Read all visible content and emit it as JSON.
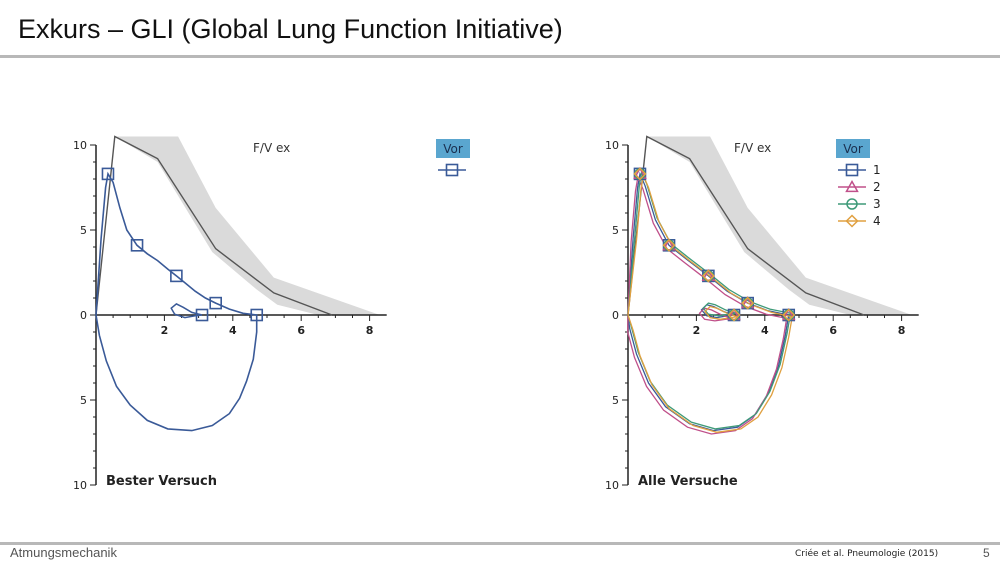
{
  "slide": {
    "title": "Exkurs – GLI (Global Lung Function Initiative)",
    "footer_left": "Atmungsmechanik",
    "citation": "Criée et al. Pneumologie (2015)",
    "page_number": "5"
  },
  "chart_data": [
    {
      "type": "line",
      "title": "F/V ex",
      "panel_label": "Bester Versuch",
      "x_ticks": [
        "2",
        "4",
        "6",
        "8"
      ],
      "y_ticks": [
        "10",
        "5",
        "0",
        "5",
        "10"
      ],
      "xlim": [
        0,
        8.5
      ],
      "ylim": [
        -10,
        10
      ],
      "legend_title": "Vor",
      "legend_position": "top-right",
      "reference_band": {
        "upper": [
          [
            0.55,
            10.5
          ],
          [
            2.4,
            10.5
          ],
          [
            3.5,
            6.3
          ],
          [
            5.2,
            2.2
          ],
          [
            8.3,
            0
          ]
        ],
        "lower": [
          [
            0.55,
            10.5
          ],
          [
            1.8,
            9.0
          ],
          [
            3.4,
            3.7
          ],
          [
            4.7,
            1.5
          ],
          [
            5.3,
            0.6
          ],
          [
            6.5,
            0
          ]
        ]
      },
      "reference_line": [
        [
          0,
          0
        ],
        [
          0.55,
          10.5
        ],
        [
          1.8,
          9.2
        ],
        [
          3.5,
          3.9
        ],
        [
          5.2,
          1.3
        ],
        [
          6.9,
          0
        ]
      ],
      "series": [
        {
          "name": "",
          "color": "#3a5a98",
          "marker": "square",
          "markers": [
            [
              0.35,
              8.3
            ],
            [
              1.2,
              4.1
            ],
            [
              2.35,
              2.3
            ],
            [
              3.5,
              0.7
            ],
            [
              3.1,
              0
            ],
            [
              4.7,
              0
            ]
          ],
          "points": [
            [
              0,
              0
            ],
            [
              0.15,
              4.5
            ],
            [
              0.28,
              7.5
            ],
            [
              0.35,
              8.3
            ],
            [
              0.5,
              7.8
            ],
            [
              0.7,
              6.3
            ],
            [
              0.9,
              5.0
            ],
            [
              1.2,
              4.1
            ],
            [
              1.5,
              3.6
            ],
            [
              1.8,
              3.2
            ],
            [
              2.1,
              2.7
            ],
            [
              2.35,
              2.3
            ],
            [
              2.6,
              1.9
            ],
            [
              2.9,
              1.4
            ],
            [
              3.2,
              1.0
            ],
            [
              3.5,
              0.7
            ],
            [
              3.9,
              0.35
            ],
            [
              4.3,
              0.1
            ],
            [
              4.7,
              0
            ],
            [
              4.7,
              -1.0
            ],
            [
              4.6,
              -2.6
            ],
            [
              4.4,
              -3.9
            ],
            [
              4.2,
              -4.9
            ],
            [
              3.9,
              -5.8
            ],
            [
              3.4,
              -6.5
            ],
            [
              2.8,
              -6.8
            ],
            [
              2.1,
              -6.7
            ],
            [
              1.5,
              -6.2
            ],
            [
              1.0,
              -5.3
            ],
            [
              0.6,
              -4.2
            ],
            [
              0.3,
              -2.7
            ],
            [
              0.1,
              -1.2
            ],
            [
              0,
              0
            ]
          ],
          "loop": [
            [
              3.1,
              0
            ],
            [
              2.8,
              0.15
            ],
            [
              2.55,
              0.45
            ],
            [
              2.35,
              0.65
            ],
            [
              2.2,
              0.4
            ],
            [
              2.3,
              0.05
            ],
            [
              2.6,
              -0.15
            ],
            [
              2.9,
              -0.05
            ],
            [
              3.1,
              0
            ]
          ]
        }
      ]
    },
    {
      "type": "line",
      "title": "F/V ex",
      "panel_label": "Alle Versuche",
      "x_ticks": [
        "2",
        "4",
        "6",
        "8"
      ],
      "y_ticks": [
        "10",
        "5",
        "0",
        "5",
        "10"
      ],
      "xlim": [
        0,
        8.5
      ],
      "ylim": [
        -10,
        10
      ],
      "legend_title": "Vor",
      "legend_position": "top-right",
      "reference_band": {
        "upper": [
          [
            0.55,
            10.5
          ],
          [
            2.4,
            10.5
          ],
          [
            3.5,
            6.3
          ],
          [
            5.2,
            2.2
          ],
          [
            8.3,
            0
          ]
        ],
        "lower": [
          [
            0.55,
            10.5
          ],
          [
            1.8,
            9.0
          ],
          [
            3.4,
            3.7
          ],
          [
            4.7,
            1.5
          ],
          [
            5.3,
            0.6
          ],
          [
            6.5,
            0
          ]
        ]
      },
      "reference_line": [
        [
          0,
          0
        ],
        [
          0.55,
          10.5
        ],
        [
          1.8,
          9.2
        ],
        [
          3.5,
          3.9
        ],
        [
          5.2,
          1.3
        ],
        [
          6.9,
          0
        ]
      ],
      "series": [
        {
          "name": "1",
          "color": "#3a5a98",
          "marker": "square",
          "dx": 0,
          "dy": 0,
          "markers": [
            [
              0.35,
              8.3
            ],
            [
              1.2,
              4.1
            ],
            [
              2.35,
              2.3
            ],
            [
              3.5,
              0.7
            ],
            [
              3.1,
              0
            ],
            [
              4.7,
              0
            ]
          ]
        },
        {
          "name": "2",
          "color": "#c0508a",
          "marker": "triangle",
          "dx": -0.06,
          "dy": -0.2,
          "markers": [
            [
              0.35,
              8.3
            ],
            [
              1.2,
              4.1
            ],
            [
              2.35,
              2.3
            ],
            [
              3.5,
              0.7
            ],
            [
              3.1,
              0
            ],
            [
              4.7,
              0
            ]
          ]
        },
        {
          "name": "3",
          "color": "#3e9a78",
          "marker": "circle",
          "dx": 0.05,
          "dy": 0.1,
          "markers": [
            [
              0.35,
              8.3
            ],
            [
              1.2,
              4.1
            ],
            [
              2.35,
              2.3
            ],
            [
              3.5,
              0.7
            ],
            [
              3.1,
              0
            ],
            [
              4.7,
              0
            ]
          ]
        },
        {
          "name": "4",
          "color": "#e0a040",
          "marker": "diamond",
          "dx": 0.1,
          "dy": -0.1,
          "markers": [
            [
              0.35,
              8.3
            ],
            [
              1.2,
              4.1
            ],
            [
              2.35,
              2.3
            ],
            [
              3.5,
              0.7
            ],
            [
              3.1,
              0
            ],
            [
              4.7,
              0
            ]
          ]
        }
      ],
      "base_curve": [
        [
          0,
          0
        ],
        [
          0.15,
          4.5
        ],
        [
          0.28,
          7.5
        ],
        [
          0.35,
          8.3
        ],
        [
          0.5,
          7.6
        ],
        [
          0.8,
          5.6
        ],
        [
          1.2,
          4.1
        ],
        [
          1.7,
          3.3
        ],
        [
          2.35,
          2.3
        ],
        [
          2.9,
          1.4
        ],
        [
          3.5,
          0.7
        ],
        [
          4.1,
          0.25
        ],
        [
          4.7,
          0
        ],
        [
          4.6,
          -1.2
        ],
        [
          4.4,
          -3.0
        ],
        [
          4.1,
          -4.6
        ],
        [
          3.7,
          -5.9
        ],
        [
          3.2,
          -6.6
        ],
        [
          2.5,
          -6.8
        ],
        [
          1.8,
          -6.4
        ],
        [
          1.1,
          -5.4
        ],
        [
          0.6,
          -4.0
        ],
        [
          0.25,
          -2.3
        ],
        [
          0.05,
          -0.8
        ],
        [
          0,
          0
        ]
      ],
      "base_loop": [
        [
          3.1,
          0
        ],
        [
          2.8,
          0.2
        ],
        [
          2.5,
          0.5
        ],
        [
          2.3,
          0.6
        ],
        [
          2.15,
          0.3
        ],
        [
          2.3,
          -0.05
        ],
        [
          2.6,
          -0.15
        ],
        [
          2.9,
          -0.05
        ],
        [
          3.1,
          0
        ]
      ]
    }
  ]
}
